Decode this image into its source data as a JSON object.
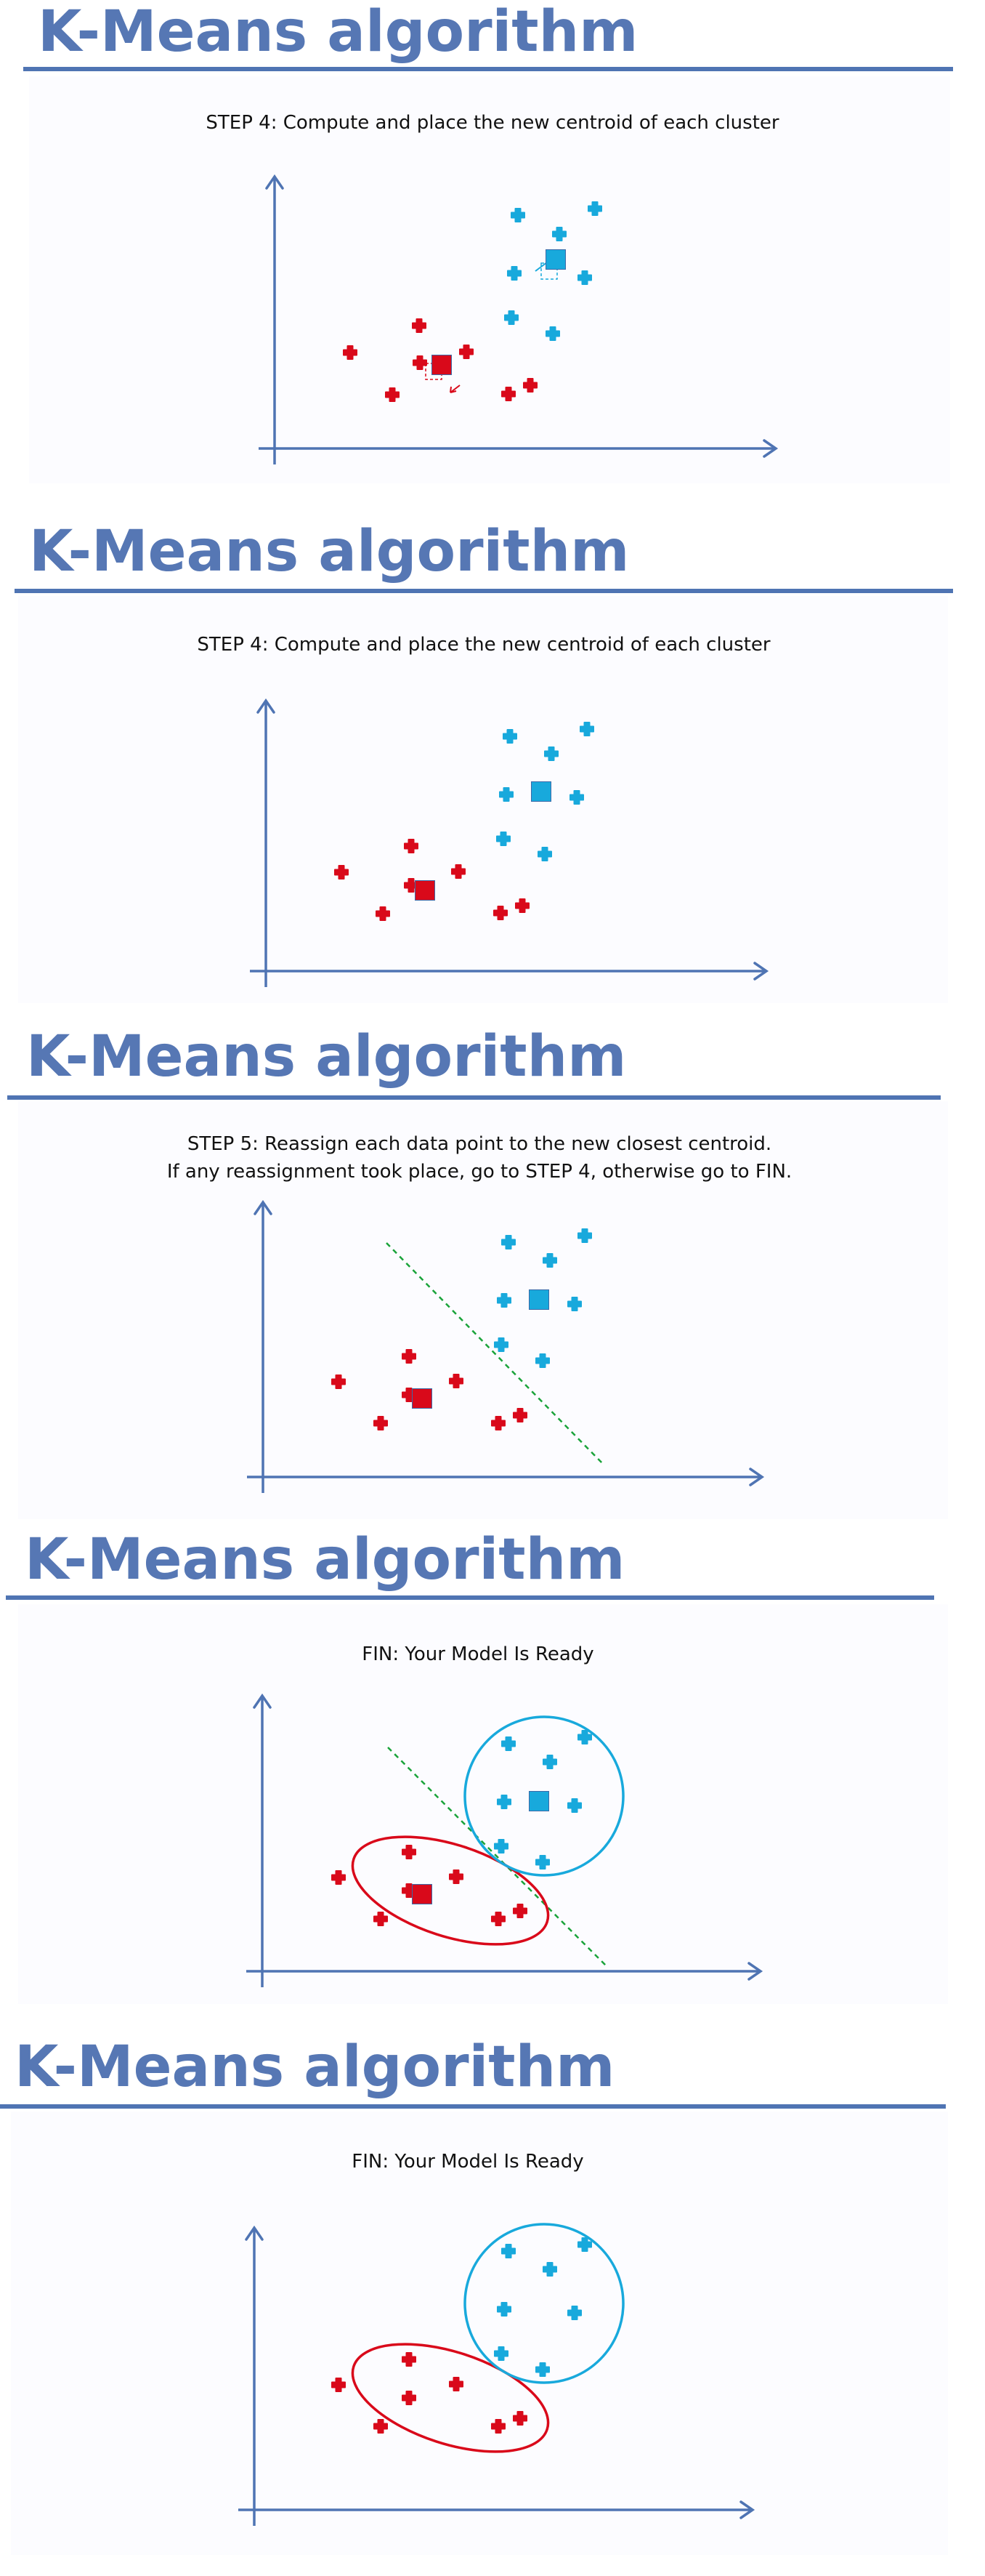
{
  "colors": {
    "title": "#5677b4",
    "rule": "#4f74b3",
    "axis": "#4f74b3",
    "red": "#d9091a",
    "blue": "#18a9dc",
    "boundary": "#1aa33a"
  },
  "slides": [
    {
      "title": "K-Means algorithm",
      "caption_lines": [
        {
          "key": "STEP 4:",
          "text": " Compute and place the new centroid of each cluster"
        }
      ]
    },
    {
      "title": "K-Means algorithm",
      "caption_lines": [
        {
          "key": "STEP 4:",
          "text": " Compute and place the new centroid of each cluster"
        }
      ]
    },
    {
      "title": "K-Means algorithm",
      "caption_lines": [
        {
          "key": "STEP 5:",
          "text": " Reassign each data point to the new closest centroid."
        },
        {
          "key": "",
          "text": "If any reassignment took place, go to STEP 4, otherwise go to FIN."
        }
      ]
    },
    {
      "title": "K-Means algorithm",
      "caption_lines": [
        {
          "key": "FIN:",
          "text": " Your Model Is Ready"
        }
      ]
    },
    {
      "title": "K-Means algorithm",
      "caption_lines": [
        {
          "key": "FIN:",
          "text": " Your Model Is Ready"
        }
      ]
    }
  ],
  "icons": {
    "data_point": "plus-marker",
    "centroid": "square-marker",
    "axis_arrow": "arrow-head"
  }
}
